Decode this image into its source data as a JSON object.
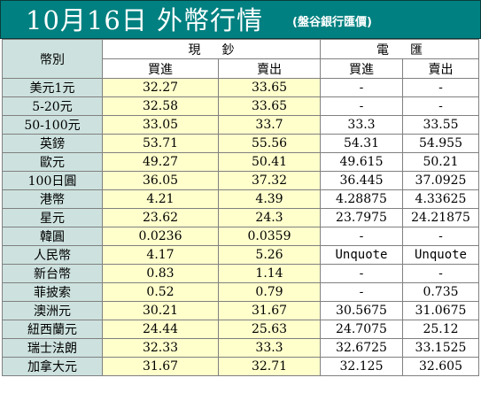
{
  "title": {
    "main": "10月16日 外幣行情",
    "sub": "(盤谷銀行匯價)"
  },
  "table": {
    "currency_header": "幣別",
    "cash_group": "現鈔",
    "wire_group": "電匯",
    "cash_buy": "買進",
    "cash_sell": "賣出",
    "wire_buy": "買進",
    "wire_sell": "賣出",
    "rows": [
      {
        "currency": "美元1元",
        "cash_buy": "32.27",
        "cash_sell": "33.65",
        "wire_buy": "-",
        "wire_sell": "-"
      },
      {
        "currency": "5-20元",
        "cash_buy": "32.58",
        "cash_sell": "33.65",
        "wire_buy": "-",
        "wire_sell": "-"
      },
      {
        "currency": "50-100元",
        "cash_buy": "33.05",
        "cash_sell": "33.7",
        "wire_buy": "33.3",
        "wire_sell": "33.55"
      },
      {
        "currency": "英鎊",
        "cash_buy": "53.71",
        "cash_sell": "55.56",
        "wire_buy": "54.31",
        "wire_sell": "54.955"
      },
      {
        "currency": "歐元",
        "cash_buy": "49.27",
        "cash_sell": "50.41",
        "wire_buy": "49.615",
        "wire_sell": "50.21"
      },
      {
        "currency": "100日圓",
        "cash_buy": "36.05",
        "cash_sell": "37.32",
        "wire_buy": "36.445",
        "wire_sell": "37.0925"
      },
      {
        "currency": "港幣",
        "cash_buy": "4.21",
        "cash_sell": "4.39",
        "wire_buy": "4.28875",
        "wire_sell": "4.33625"
      },
      {
        "currency": "星元",
        "cash_buy": "23.62",
        "cash_sell": "24.3",
        "wire_buy": "23.7975",
        "wire_sell": "24.21875"
      },
      {
        "currency": "韓圓",
        "cash_buy": "0.0236",
        "cash_sell": "0.0359",
        "wire_buy": "-",
        "wire_sell": "-"
      },
      {
        "currency": "人民幣",
        "cash_buy": "4.17",
        "cash_sell": "5.26",
        "wire_buy": "Unquote",
        "wire_sell": "Unquote"
      },
      {
        "currency": "新台幣",
        "cash_buy": "0.83",
        "cash_sell": "1.14",
        "wire_buy": "-",
        "wire_sell": "-"
      },
      {
        "currency": "菲披索",
        "cash_buy": "0.52",
        "cash_sell": "0.79",
        "wire_buy": "-",
        "wire_sell": "0.735"
      },
      {
        "currency": "澳洲元",
        "cash_buy": "30.21",
        "cash_sell": "31.67",
        "wire_buy": "30.5675",
        "wire_sell": "31.0675"
      },
      {
        "currency": "紐西蘭元",
        "cash_buy": "24.44",
        "cash_sell": "25.63",
        "wire_buy": "24.7075",
        "wire_sell": "25.12"
      },
      {
        "currency": "瑞士法朗",
        "cash_buy": "32.33",
        "cash_sell": "33.3",
        "wire_buy": "32.6725",
        "wire_sell": "33.1525"
      },
      {
        "currency": "加拿大元",
        "cash_buy": "31.67",
        "cash_sell": "32.71",
        "wire_buy": "32.125",
        "wire_sell": "32.605"
      }
    ]
  }
}
